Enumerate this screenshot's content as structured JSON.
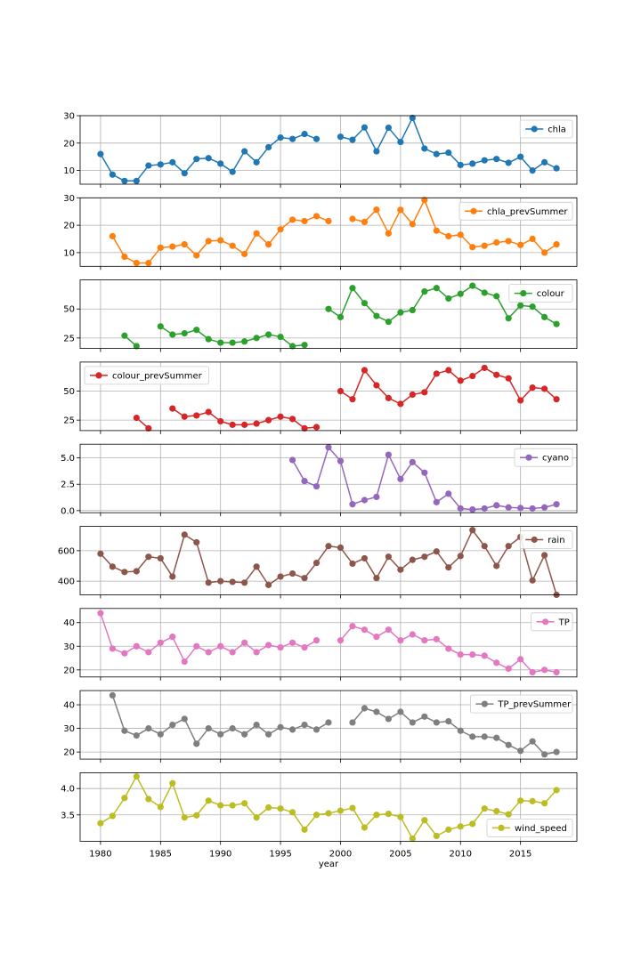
{
  "chart_data": {
    "type": "line",
    "layout": "stacked-subplots-shared-x",
    "xlabel": "year",
    "x_ticks": [
      1980,
      1985,
      1990,
      1995,
      2000,
      2005,
      2010,
      2015
    ],
    "x_range": [
      1978.3,
      2019.7
    ],
    "grid": true,
    "marker": "circle",
    "x": [
      1980,
      1981,
      1982,
      1983,
      1984,
      1985,
      1986,
      1987,
      1988,
      1989,
      1990,
      1991,
      1992,
      1993,
      1994,
      1995,
      1996,
      1997,
      1998,
      1999,
      2000,
      2001,
      2002,
      2003,
      2004,
      2005,
      2006,
      2007,
      2008,
      2009,
      2010,
      2011,
      2012,
      2013,
      2014,
      2015,
      2016,
      2017,
      2018
    ],
    "panels": [
      {
        "series": "chla",
        "color": "#1f77b4",
        "legend": "top-right",
        "ylim": [
          5,
          30
        ],
        "yticks": [
          10,
          20,
          30
        ],
        "ytick_labels": [
          "10",
          "20",
          "30"
        ],
        "values": [
          16,
          8.5,
          6.2,
          6.2,
          11.8,
          12.2,
          13,
          9,
          14.2,
          14.5,
          12.5,
          9.5,
          17,
          13,
          18.5,
          22,
          21.5,
          23.3,
          21.5,
          null,
          22.3,
          21.2,
          25.7,
          17,
          25.6,
          20.4,
          29.2,
          18,
          16,
          16.5,
          12,
          12.5,
          13.7,
          14.2,
          12.8,
          15,
          10,
          13,
          10.8
        ]
      },
      {
        "series": "chla_prevSummer",
        "color": "#ff7f0e",
        "legend": "top-right",
        "ylim": [
          5,
          30
        ],
        "yticks": [
          10,
          20,
          30
        ],
        "ytick_labels": [
          "10",
          "20",
          "30"
        ],
        "values": [
          null,
          16,
          8.5,
          6.2,
          6.2,
          11.8,
          12.2,
          13,
          9,
          14.2,
          14.5,
          12.5,
          9.5,
          17,
          13,
          18.5,
          22,
          21.5,
          23.3,
          21.5,
          null,
          22.3,
          21.2,
          25.7,
          17,
          25.6,
          20.4,
          29.2,
          18,
          16,
          16.5,
          12,
          12.5,
          13.7,
          14.2,
          12.8,
          15,
          10,
          13
        ]
      },
      {
        "series": "colour",
        "color": "#2ca02c",
        "legend": "top-right",
        "ylim": [
          16,
          75
        ],
        "yticks": [
          25,
          50
        ],
        "ytick_labels": [
          "25",
          "50"
        ],
        "values": [
          null,
          null,
          27,
          18,
          null,
          35,
          28,
          29,
          32,
          24,
          21,
          21,
          22,
          25,
          28,
          26,
          18,
          19,
          null,
          50,
          43,
          68,
          55,
          44,
          39,
          47,
          49,
          65,
          68,
          59,
          63,
          70,
          64,
          61,
          42,
          53,
          52,
          43,
          37
        ]
      },
      {
        "series": "colour_prevSummer",
        "color": "#d62728",
        "legend": "top-left",
        "ylim": [
          16,
          75
        ],
        "yticks": [
          25,
          50
        ],
        "ytick_labels": [
          "25",
          "50"
        ],
        "values": [
          null,
          null,
          null,
          27,
          18,
          null,
          35,
          28,
          29,
          32,
          24,
          21,
          21,
          22,
          25,
          28,
          26,
          18,
          19,
          null,
          50,
          43,
          68,
          55,
          44,
          39,
          47,
          49,
          65,
          68,
          59,
          63,
          70,
          64,
          61,
          42,
          53,
          52,
          43
        ]
      },
      {
        "series": "cyano",
        "color": "#9467bd",
        "legend": "top-right",
        "ylim": [
          -0.2,
          6.3
        ],
        "yticks": [
          0,
          2.5,
          5
        ],
        "ytick_labels": [
          "0.0",
          "2.5",
          "5.0"
        ],
        "values": [
          null,
          null,
          null,
          null,
          null,
          null,
          null,
          null,
          null,
          null,
          null,
          null,
          null,
          null,
          null,
          null,
          4.8,
          2.8,
          2.3,
          6,
          4.7,
          0.6,
          1,
          1.3,
          5.3,
          3,
          4.6,
          3.6,
          0.8,
          1.6,
          0.2,
          0.1,
          0.2,
          0.5,
          0.3,
          0.25,
          0.2,
          0.3,
          0.6
        ]
      },
      {
        "series": "rain",
        "color": "#8c564b",
        "legend": "top-right",
        "ylim": [
          310,
          760
        ],
        "yticks": [
          400,
          600
        ],
        "ytick_labels": [
          "400",
          "600"
        ],
        "values": [
          580,
          495,
          460,
          465,
          560,
          550,
          430,
          705,
          655,
          390,
          400,
          395,
          390,
          495,
          375,
          430,
          450,
          420,
          520,
          630,
          620,
          515,
          550,
          420,
          560,
          475,
          540,
          560,
          595,
          490,
          565,
          735,
          630,
          500,
          630,
          690,
          405,
          570,
          310
        ]
      },
      {
        "series": "TP",
        "color": "#e377c2",
        "legend": "top-right",
        "ylim": [
          17,
          46
        ],
        "yticks": [
          20,
          30,
          40
        ],
        "ytick_labels": [
          "20",
          "30",
          "40"
        ],
        "values": [
          44,
          29,
          27,
          30,
          27.5,
          31.5,
          34,
          23.5,
          30,
          27.5,
          30,
          27.5,
          31.5,
          27.5,
          30.5,
          29.5,
          31.5,
          29.5,
          32.5,
          null,
          32.5,
          38.5,
          37,
          34,
          37,
          32.5,
          35,
          32.5,
          33,
          29,
          26.5,
          26.5,
          26,
          23,
          20.5,
          24.5,
          19,
          20,
          19
        ]
      },
      {
        "series": "TP_prevSummer",
        "color": "#7f7f7f",
        "legend": "top-right",
        "ylim": [
          17,
          46
        ],
        "yticks": [
          20,
          30,
          40
        ],
        "ytick_labels": [
          "20",
          "30",
          "40"
        ],
        "values": [
          null,
          44,
          29,
          27,
          30,
          27.5,
          31.5,
          34,
          23.5,
          30,
          27.5,
          30,
          27.5,
          31.5,
          27.5,
          30.5,
          29.5,
          31.5,
          29.5,
          32.5,
          null,
          32.5,
          38.5,
          37,
          34,
          37,
          32.5,
          35,
          32.5,
          33,
          29,
          26.5,
          26.5,
          26,
          23,
          20.5,
          24.5,
          19,
          20
        ]
      },
      {
        "series": "wind_speed",
        "color": "#bcbd22",
        "legend": "bottom-right",
        "ylim": [
          3.0,
          4.3
        ],
        "yticks": [
          3.5,
          4.0
        ],
        "ytick_labels": [
          "3.5",
          "4.0"
        ],
        "values": [
          3.34,
          3.48,
          3.82,
          4.23,
          3.8,
          3.65,
          4.1,
          3.45,
          3.49,
          3.77,
          3.68,
          3.68,
          3.72,
          3.45,
          3.64,
          3.62,
          3.55,
          3.22,
          3.5,
          3.53,
          3.58,
          3.63,
          3.26,
          3.5,
          3.52,
          3.46,
          3.05,
          3.4,
          3.1,
          3.22,
          3.28,
          3.33,
          3.62,
          3.57,
          3.51,
          3.77,
          3.76,
          3.72,
          3.97
        ]
      }
    ]
  }
}
